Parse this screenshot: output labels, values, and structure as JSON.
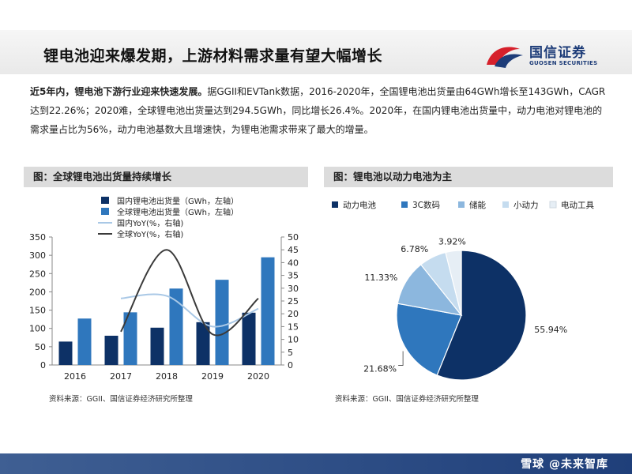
{
  "header": {
    "title": "锂电池迎来爆发期，上游材料需求量有望大幅增长",
    "logo_cn": "国信证券",
    "logo_en": "GUOSEN SECURITIES"
  },
  "intro": {
    "lead": "近5年内，锂电池下游行业迎来快速发展。",
    "body": "据GGII和EVTank数据，2016-2020年，全国锂电池出货量由64GWh增长至143GWh，CAGR达到22.26%；2020难，全球锂电池出货量达到294.5GWh，同比增长26.4%。2020年，在国内锂电池出货量中，动力电池对锂电池的需求量占比为56%，动力电池基数大且增速快，为锂电池需求带来了最大的增量。"
  },
  "left_panel": {
    "heading": "图：全球锂电池出货量持续增长",
    "source": "资料来源：GGII、国信证券经济研究所整理"
  },
  "right_panel": {
    "heading": "图：锂电池以动力电池为主",
    "source": "资料来源：GGII、国信证券经济研究所整理"
  },
  "footer": {
    "watermark": "雪球 @未来智库"
  },
  "colors": {
    "dark_navy": "#0d3166",
    "mid_blue": "#2f77bd",
    "light_blue": "#8cb7de",
    "pale_blue": "#c5dcef",
    "very_pale": "#e6eef5"
  },
  "chart_data": [
    {
      "type": "bar",
      "categories": [
        "2016",
        "2017",
        "2018",
        "2019",
        "2020"
      ],
      "series": [
        {
          "name": "国内锂电池出货量（GWh，左轴）",
          "kind": "bar",
          "axis": "left",
          "color": "#0d3166",
          "values": [
            64,
            80,
            102,
            117,
            143
          ]
        },
        {
          "name": "全球锂电池出货量（GWh，左轴）",
          "kind": "bar",
          "axis": "left",
          "color": "#2f77bd",
          "values": [
            127,
            144,
            209,
            233,
            294.5
          ]
        },
        {
          "name": "国内YoY(%，右轴)",
          "kind": "line",
          "axis": "right",
          "color": "#a9c8e6",
          "values": [
            null,
            26,
            27,
            15,
            22
          ]
        },
        {
          "name": "全球YoY(%，右轴)",
          "kind": "line",
          "axis": "right",
          "color": "#3a3a3a",
          "values": [
            null,
            13,
            45,
            12,
            26
          ]
        }
      ],
      "y_left": {
        "min": 0,
        "max": 350,
        "ticks": [
          "0",
          "50",
          "100",
          "150",
          "200",
          "250",
          "300",
          "350"
        ]
      },
      "y_right": {
        "min": 0,
        "max": 50,
        "ticks": [
          "0",
          "5",
          "10",
          "15",
          "20",
          "25",
          "30",
          "35",
          "40",
          "45",
          "50"
        ]
      },
      "legend_position": "top-center",
      "grid": false
    },
    {
      "type": "pie",
      "labels": [
        "动力电池",
        "3C数码",
        "储能",
        "小动力",
        "电动工具"
      ],
      "values": [
        55.94,
        21.68,
        11.33,
        6.78,
        3.92
      ],
      "value_labels": [
        "55.94%",
        "21.68%",
        "11.33%",
        "6.78%",
        "3.92%"
      ],
      "colors": [
        "#0d3166",
        "#2f77bd",
        "#8cb7de",
        "#c5dcef",
        "#e6eef5"
      ],
      "legend_position": "top"
    }
  ]
}
